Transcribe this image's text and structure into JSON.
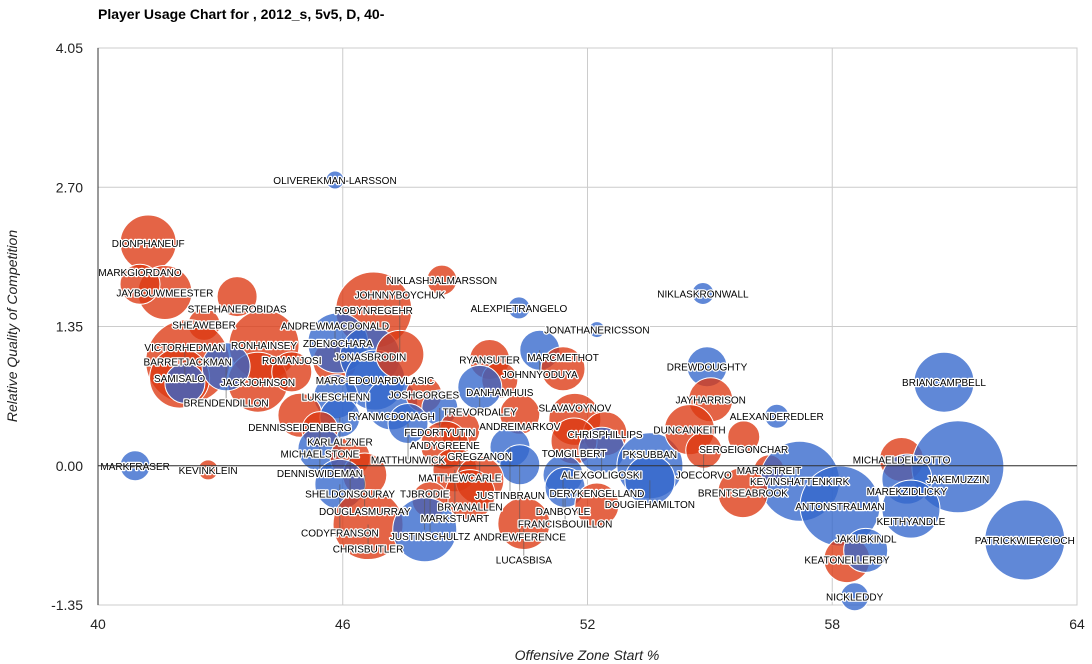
{
  "chart_data": {
    "type": "bubble",
    "title": "Player Usage Chart for , 2012_s, 5v5, D, 40-",
    "xlabel": "Offensive Zone Start %",
    "ylabel": "Relative Quality of Competition",
    "xlim": [
      40,
      64
    ],
    "ylim": [
      -1.35,
      4.05
    ],
    "xticks": [
      "40",
      "46",
      "52",
      "58",
      "64"
    ],
    "yticks": [
      "4.05",
      "2.70",
      "1.35",
      "0.00",
      "-1.35"
    ],
    "grid": true,
    "colors": {
      "red": "#dc3912",
      "blue": "#3366cc"
    },
    "points": [
      {
        "label": "OLIVEREKMAN-LARSSON",
        "x": 45.81,
        "y": 2.77,
        "size": 0.9,
        "color": "blue"
      },
      {
        "label": "DIONPHANEUF",
        "x": 41.23,
        "y": 2.16,
        "size": 2.8,
        "color": "red"
      },
      {
        "label": "JAYBOUWMEESTER",
        "x": 41.64,
        "y": 1.68,
        "size": 2.7,
        "color": "red"
      },
      {
        "label": "MARKGIORDANO",
        "x": 41.03,
        "y": 1.76,
        "size": 2.0,
        "color": "red"
      },
      {
        "label": "STEPHANEROBIDAS",
        "x": 43.41,
        "y": 1.64,
        "size": 2.0,
        "color": "red"
      },
      {
        "label": "SHEAWEBER",
        "x": 42.6,
        "y": 1.37,
        "size": 1.6,
        "color": "red"
      },
      {
        "label": "NIKLASHJALMARSSON",
        "x": 48.43,
        "y": 1.8,
        "size": 1.5,
        "color": "red"
      },
      {
        "label": "ROBYNREGEHR",
        "x": 46.76,
        "y": 1.51,
        "size": 3.8,
        "color": "red"
      },
      {
        "label": "ALEXPIETRANGELO",
        "x": 50.32,
        "y": 1.53,
        "size": 1.1,
        "color": "blue"
      },
      {
        "label": "JONATHANERICSSON",
        "x": 52.23,
        "y": 1.32,
        "size": 0.8,
        "color": "blue"
      },
      {
        "label": "NIKLASKRONWALL",
        "x": 54.83,
        "y": 1.67,
        "size": 1.1,
        "color": "blue"
      },
      {
        "label": "BARRETJACKMAN",
        "x": 42.2,
        "y": 1.01,
        "size": 4.2,
        "color": "red"
      },
      {
        "label": "RONHAINSEY",
        "x": 44.07,
        "y": 1.17,
        "size": 3.5,
        "color": "red"
      },
      {
        "label": "SAMISALO",
        "x": 42.0,
        "y": 0.85,
        "size": 3.0,
        "color": "red"
      },
      {
        "label": "JACKJOHNSON",
        "x": 43.92,
        "y": 0.81,
        "size": 3.0,
        "color": "red"
      },
      {
        "label": "BRENDENDILLON",
        "x": 43.14,
        "y": 0.96,
        "size": 2.4,
        "color": "blue"
      },
      {
        "label": "VICTORHEDMAN",
        "x": 42.13,
        "y": 0.8,
        "size": 2.0,
        "color": "blue"
      },
      {
        "label": "ROMANJOSI",
        "x": 44.75,
        "y": 0.91,
        "size": 2.0,
        "color": "red"
      },
      {
        "label": "ANDREWMACDONALD",
        "x": 45.81,
        "y": 1.01,
        "size": 2.2,
        "color": "red"
      },
      {
        "label": "ZDENOCHARA",
        "x": 45.88,
        "y": 1.19,
        "size": 3.0,
        "color": "blue"
      },
      {
        "label": "JONASBRODIN",
        "x": 46.67,
        "y": 1.06,
        "size": 3.0,
        "color": "blue"
      },
      {
        "label": "MARC-EDOUARDVLASIC",
        "x": 46.79,
        "y": 0.83,
        "size": 3.0,
        "color": "blue"
      },
      {
        "label": "LUKESCHENN",
        "x": 45.83,
        "y": 0.67,
        "size": 2.2,
        "color": "blue"
      },
      {
        "label": "RYANMCDONAGH",
        "x": 47.2,
        "y": 0.6,
        "size": 2.6,
        "color": "blue"
      },
      {
        "label": "JOHNNYBOYCHUK",
        "x": 47.4,
        "y": 1.08,
        "size": 2.4,
        "color": "red"
      },
      {
        "label": "RYANSUTER",
        "x": 49.6,
        "y": 1.03,
        "size": 2.0,
        "color": "red"
      },
      {
        "label": "JOHNNYODUYA",
        "x": 50.83,
        "y": 1.12,
        "size": 2.0,
        "color": "blue"
      },
      {
        "label": "MARCMETHOT",
        "x": 51.4,
        "y": 0.94,
        "size": 2.2,
        "color": "red"
      },
      {
        "label": "DANHAMHUIS",
        "x": 49.85,
        "y": 0.83,
        "size": 1.8,
        "color": "red"
      },
      {
        "label": "TREVORDALEY",
        "x": 49.36,
        "y": 0.76,
        "size": 2.2,
        "color": "blue"
      },
      {
        "label": "JOSHGORGES",
        "x": 47.99,
        "y": 0.69,
        "size": 1.8,
        "color": "red"
      },
      {
        "label": "FEDORTYUTIN",
        "x": 48.38,
        "y": 0.56,
        "size": 1.8,
        "color": "blue"
      },
      {
        "label": "ANDREIMARKOV",
        "x": 50.34,
        "y": 0.5,
        "size": 2.0,
        "color": "red"
      },
      {
        "label": "DENNISSEIDENBERG",
        "x": 44.95,
        "y": 0.49,
        "size": 2.2,
        "color": "red"
      },
      {
        "label": "KARLALZNER",
        "x": 45.93,
        "y": 0.47,
        "size": 2.0,
        "color": "blue"
      },
      {
        "label": "MICHAELSTONE",
        "x": 45.44,
        "y": 0.35,
        "size": 1.8,
        "color": "red"
      },
      {
        "label": "MATTHUNWICK",
        "x": 47.6,
        "y": 0.41,
        "size": 2.0,
        "color": "blue"
      },
      {
        "label": "MATTHEWCARLE",
        "x": 48.87,
        "y": 0.35,
        "size": 2.0,
        "color": "red"
      },
      {
        "label": "SLAVAVOYNOV",
        "x": 51.69,
        "y": 0.45,
        "size": 2.6,
        "color": "red"
      },
      {
        "label": "CHRISPHILLIPS",
        "x": 52.43,
        "y": 0.31,
        "size": 2.2,
        "color": "red"
      },
      {
        "label": "TOMGILBERT",
        "x": 51.67,
        "y": 0.24,
        "size": 2.3,
        "color": "red"
      },
      {
        "label": "ALEXGOLIGOSKI",
        "x": 52.35,
        "y": 0.15,
        "size": 2.3,
        "color": "blue"
      },
      {
        "label": "DENNISWIDEMAN",
        "x": 45.44,
        "y": 0.16,
        "size": 2.2,
        "color": "blue"
      },
      {
        "label": "SHELDONSOURAY",
        "x": 46.18,
        "y": 0.08,
        "size": 2.0,
        "color": "red"
      },
      {
        "label": "ANDYGREENE",
        "x": 48.5,
        "y": 0.2,
        "size": 2.4,
        "color": "red"
      },
      {
        "label": "JUSTINBRAUN",
        "x": 50.1,
        "y": 0.18,
        "size": 2.0,
        "color": "blue"
      },
      {
        "label": "DOUGLASMURRAY",
        "x": 46.54,
        "y": -0.09,
        "size": 2.2,
        "color": "red"
      },
      {
        "label": "CODYFRANSON",
        "x": 45.93,
        "y": -0.18,
        "size": 2.5,
        "color": "blue"
      },
      {
        "label": "MARKSTUART",
        "x": 48.75,
        "y": -0.04,
        "size": 2.2,
        "color": "red"
      },
      {
        "label": "ANDREWFERENCE",
        "x": 50.34,
        "y": 0.01,
        "size": 2.0,
        "color": "blue"
      },
      {
        "label": "GREGZANON",
        "x": 49.36,
        "y": -0.14,
        "size": 2.4,
        "color": "red"
      },
      {
        "label": "BRYANALLEN",
        "x": 49.12,
        "y": -0.28,
        "size": 2.5,
        "color": "red"
      },
      {
        "label": "DANBOYLE",
        "x": 51.4,
        "y": -0.09,
        "size": 2.0,
        "color": "blue"
      },
      {
        "label": "FRANCISBOUILLON",
        "x": 51.45,
        "y": -0.21,
        "size": 2.0,
        "color": "blue"
      },
      {
        "label": "JUSTINSCHULTZ",
        "x": 48.14,
        "y": -0.33,
        "size": 1.8,
        "color": "red"
      },
      {
        "label": "CHRISBUTLER",
        "x": 46.62,
        "y": -0.57,
        "size": 3.5,
        "color": "red"
      },
      {
        "label": "TJBRODIE",
        "x": 48.01,
        "y": -0.62,
        "size": 3.2,
        "color": "blue"
      },
      {
        "label": "LUCASBISA",
        "x": 50.44,
        "y": -0.56,
        "size": 2.6,
        "color": "red"
      },
      {
        "label": "DERYKENGELLAND",
        "x": 52.23,
        "y": -0.38,
        "size": 2.2,
        "color": "red"
      },
      {
        "label": "PKSUBBAN",
        "x": 53.53,
        "y": 0.0,
        "size": 3.3,
        "color": "blue"
      },
      {
        "label": "DOUGIEHAMILTON",
        "x": 53.53,
        "y": -0.14,
        "size": 2.5,
        "color": "blue"
      },
      {
        "label": "DREWDOUGHTY",
        "x": 54.93,
        "y": 0.96,
        "size": 2.0,
        "color": "blue"
      },
      {
        "label": "JAYHARRISON",
        "x": 55.02,
        "y": 0.64,
        "size": 2.2,
        "color": "red"
      },
      {
        "label": "ALEXANDEREDLER",
        "x": 56.64,
        "y": 0.48,
        "size": 1.2,
        "color": "blue"
      },
      {
        "label": "DUNCANKEITH",
        "x": 54.5,
        "y": 0.35,
        "size": 2.5,
        "color": "red"
      },
      {
        "label": "SERGEIGONCHAR",
        "x": 55.83,
        "y": 0.28,
        "size": 1.6,
        "color": "red"
      },
      {
        "label": "JOECORVO",
        "x": 54.85,
        "y": 0.15,
        "size": 1.8,
        "color": "red"
      },
      {
        "label": "MARKSTREIT",
        "x": 56.45,
        "y": -0.04,
        "size": 1.5,
        "color": "red"
      },
      {
        "label": "KEVINSHATTENKIRK",
        "x": 57.2,
        "y": -0.15,
        "size": 4.0,
        "color": "blue"
      },
      {
        "label": "BRENTSEABROOK",
        "x": 55.81,
        "y": -0.26,
        "size": 2.5,
        "color": "red"
      },
      {
        "label": "ANTONSTRALMAN",
        "x": 58.19,
        "y": -0.39,
        "size": 4.0,
        "color": "blue"
      },
      {
        "label": "BRIANCAMPBELL",
        "x": 60.74,
        "y": 0.81,
        "size": 3.0,
        "color": "blue"
      },
      {
        "label": "MICHAELDELZOTTO",
        "x": 59.7,
        "y": 0.06,
        "size": 2.2,
        "color": "red"
      },
      {
        "label": "JAKEMUZZIN",
        "x": 61.08,
        "y": -0.01,
        "size": 4.6,
        "color": "blue"
      },
      {
        "label": "MAREKZIDLICKY",
        "x": 59.83,
        "y": -0.13,
        "size": 2.5,
        "color": "blue"
      },
      {
        "label": "KEITHYANDLE",
        "x": 59.93,
        "y": -0.42,
        "size": 2.9,
        "color": "blue"
      },
      {
        "label": "PATRICKWIERCIOCH",
        "x": 62.72,
        "y": -0.72,
        "size": 4.0,
        "color": "blue"
      },
      {
        "label": "KEATONELLERBY",
        "x": 58.36,
        "y": -0.91,
        "size": 2.3,
        "color": "red"
      },
      {
        "label": "JAKUBKINDL",
        "x": 58.82,
        "y": -0.82,
        "size": 2.2,
        "color": "blue"
      },
      {
        "label": "NICKLEDDY",
        "x": 58.55,
        "y": -1.27,
        "size": 1.4,
        "color": "blue"
      },
      {
        "label": "MARKFRASER",
        "x": 40.91,
        "y": 0.0,
        "size": 1.5,
        "color": "blue"
      },
      {
        "label": "KEVINKLEIN",
        "x": 42.7,
        "y": -0.04,
        "size": 1.0,
        "color": "red"
      }
    ]
  }
}
